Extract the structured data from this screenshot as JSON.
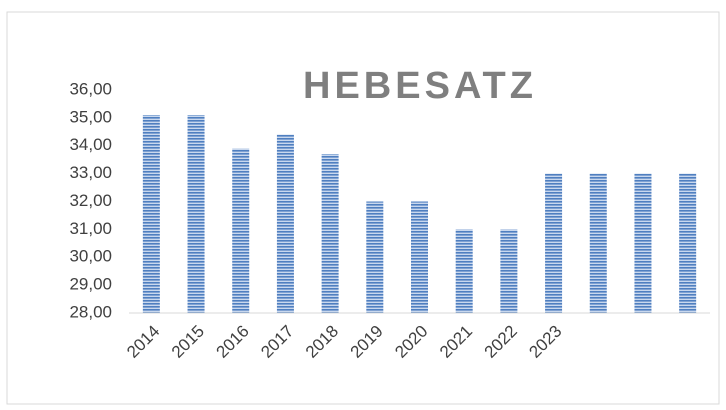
{
  "chart_data": {
    "type": "bar",
    "title": "HEBESATZ",
    "categories": [
      "2014",
      "2015",
      "2016",
      "2017",
      "2018",
      "2019",
      "2020",
      "2021",
      "2022",
      "2023",
      null,
      null,
      null
    ],
    "values": [
      35.1,
      35.1,
      33.9,
      34.4,
      33.7,
      32.0,
      32.0,
      31.0,
      31.0,
      33.0,
      33.0,
      33.0,
      33.0
    ],
    "color": "#4f7fc0",
    "ylim": [
      28,
      36
    ],
    "yticks": [
      {
        "value": 28,
        "label": "28,00"
      },
      {
        "value": 29,
        "label": "29,00"
      },
      {
        "value": 30,
        "label": "30,00"
      },
      {
        "value": 31,
        "label": "31,00"
      },
      {
        "value": 32,
        "label": "32,00"
      },
      {
        "value": 33,
        "label": "33,00"
      },
      {
        "value": 34,
        "label": "34,00"
      },
      {
        "value": 35,
        "label": "35,00"
      },
      {
        "value": 36,
        "label": "36,00"
      }
    ],
    "grid": false
  }
}
